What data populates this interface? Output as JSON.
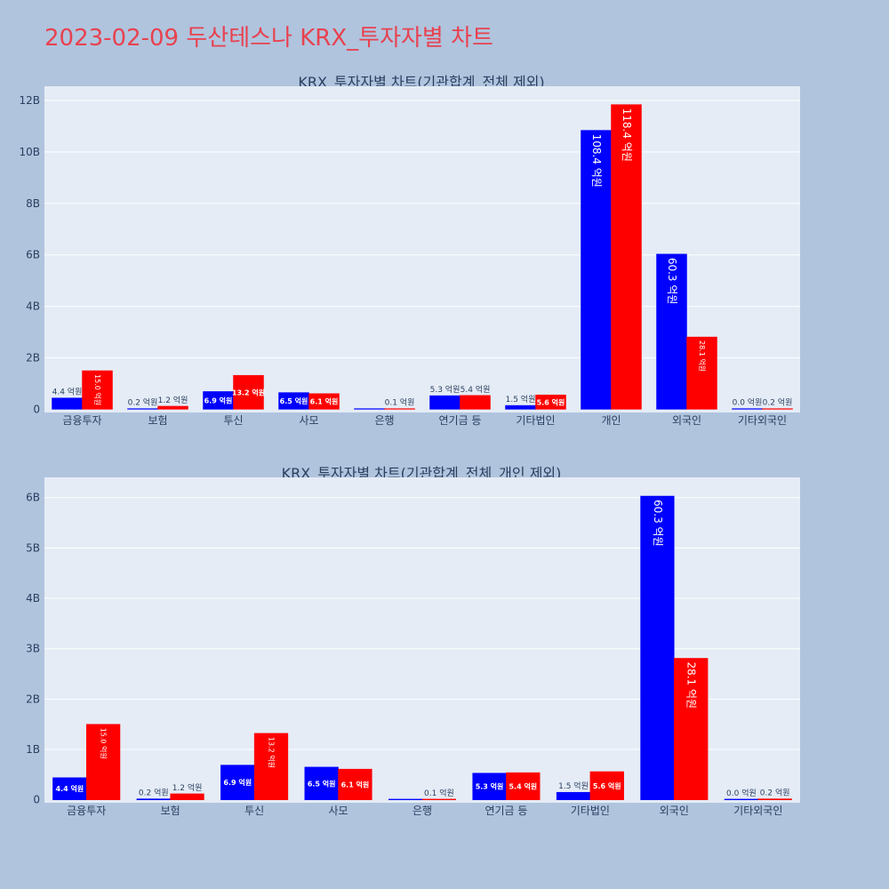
{
  "page": {
    "title": "2023-02-09 두산테스나 KRX_투자자별 차트"
  },
  "colors": {
    "bg": "#b0c4de",
    "plot_bg": "#e5ecf6",
    "series_a": "#0000ff",
    "series_b": "#ff0000",
    "title": "#e8424f"
  },
  "chart_data": [
    {
      "type": "bar",
      "title": "KRX_투자자별 차트(기관합계_전체 제외)",
      "xlabel": "",
      "ylabel": "",
      "categories": [
        "금융투자",
        "보험",
        "투신",
        "사모",
        "은행",
        "연기금 등",
        "기타법인",
        "개인",
        "외국인",
        "기타외국인"
      ],
      "ylim": [
        0,
        12600000000
      ],
      "yticks": [
        0,
        2000000000,
        4000000000,
        6000000000,
        8000000000,
        10000000000,
        12000000000
      ],
      "yticklabels": [
        "0",
        "2B",
        "4B",
        "6B",
        "8B",
        "10B",
        "12B"
      ],
      "grid": true,
      "series": [
        {
          "values": [
            440000000,
            20000000,
            690000000,
            650000000,
            0,
            530000000,
            150000000,
            10840000000,
            6030000000,
            0
          ],
          "labels": [
            "4.4 억원",
            "0.2 억원",
            "6.9 억원",
            "6.5 억원",
            "",
            "5.3 억원",
            "1.5 억원",
            "108.4 억원",
            "60.3 억원",
            "0.0 억원"
          ]
        },
        {
          "values": [
            1500000000,
            120000000,
            1320000000,
            610000000,
            10000000,
            540000000,
            560000000,
            11840000000,
            2810000000,
            20000000
          ],
          "labels": [
            "15.0 억원",
            "1.2 억원",
            "13.2 억원",
            "6.1 억원",
            "0.1 억원",
            "5.4 억원",
            "5.6 억원",
            "118.4 억원",
            "28.1 억원",
            "0.2 억원"
          ]
        }
      ]
    },
    {
      "type": "bar",
      "title": "KRX_투자자별 차트(기관합계_전체_개인 제외)",
      "xlabel": "",
      "ylabel": "",
      "categories": [
        "금융투자",
        "보험",
        "투신",
        "사모",
        "은행",
        "연기금 등",
        "기타법인",
        "외국인",
        "기타외국인"
      ],
      "ylim": [
        0,
        6400000000
      ],
      "yticks": [
        0,
        1000000000,
        2000000000,
        3000000000,
        4000000000,
        5000000000,
        6000000000
      ],
      "yticklabels": [
        "0",
        "1B",
        "2B",
        "3B",
        "4B",
        "5B",
        "6B"
      ],
      "grid": true,
      "series": [
        {
          "values": [
            440000000,
            20000000,
            690000000,
            650000000,
            0,
            530000000,
            150000000,
            6030000000,
            0
          ],
          "labels": [
            "4.4 억원",
            "0.2 억원",
            "6.9 억원",
            "6.5 억원",
            "",
            "5.3 억원",
            "1.5 억원",
            "60.3 억원",
            "0.0 억원"
          ]
        },
        {
          "values": [
            1500000000,
            120000000,
            1320000000,
            610000000,
            10000000,
            540000000,
            560000000,
            2810000000,
            20000000
          ],
          "labels": [
            "15.0 억원",
            "1.2 억원",
            "13.2 억원",
            "6.1 억원",
            "0.1 억원",
            "5.4 억원",
            "5.6 억원",
            "28.1 억원",
            "0.2 억원"
          ]
        }
      ]
    }
  ]
}
